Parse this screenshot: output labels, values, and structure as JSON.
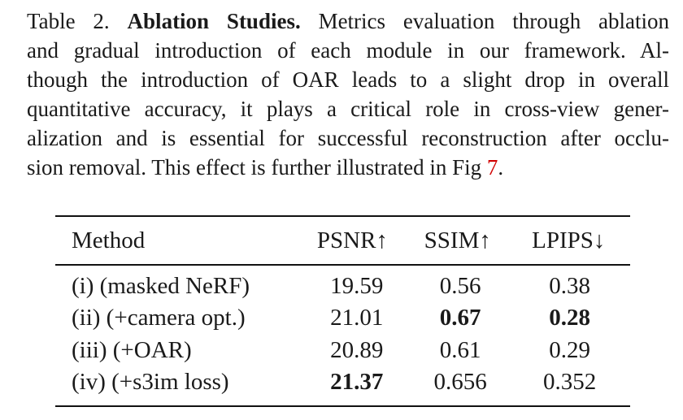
{
  "caption": {
    "table_number": "Table 2.",
    "title": "Ablation Studies.",
    "lines": [
      " Metrics evaluation through ablation",
      "and gradual introduction of each module in our framework. Al-",
      "though the introduction of OAR leads to a slight drop in overall",
      "quantitative accuracy, it plays a critical role in cross-view gener-",
      "alization and is essential for successful reconstruction after occlu-"
    ],
    "last_line_prefix": "sion removal. This effect is further illustrated in Fig ",
    "fig_ref": "7",
    "last_line_suffix": "."
  },
  "table": {
    "headers": {
      "method": "Method",
      "psnr": "PSNR↑",
      "ssim": "SSIM↑",
      "lpips": "LPIPS↓"
    },
    "rows": [
      {
        "method": "(i) (masked NeRF)",
        "psnr": "19.59",
        "ssim": "0.56",
        "lpips": "0.38"
      },
      {
        "method": "(ii) (+camera opt.)",
        "psnr": "21.01",
        "ssim": "0.67",
        "lpips": "0.28"
      },
      {
        "method": "(iii) (+OAR)",
        "psnr": "20.89",
        "ssim": "0.61",
        "lpips": "0.29"
      },
      {
        "method": "(iv) (+s3im loss)",
        "psnr": "21.37",
        "ssim": "0.656",
        "lpips": "0.352"
      }
    ]
  },
  "colors": {
    "link": "#d10000"
  }
}
